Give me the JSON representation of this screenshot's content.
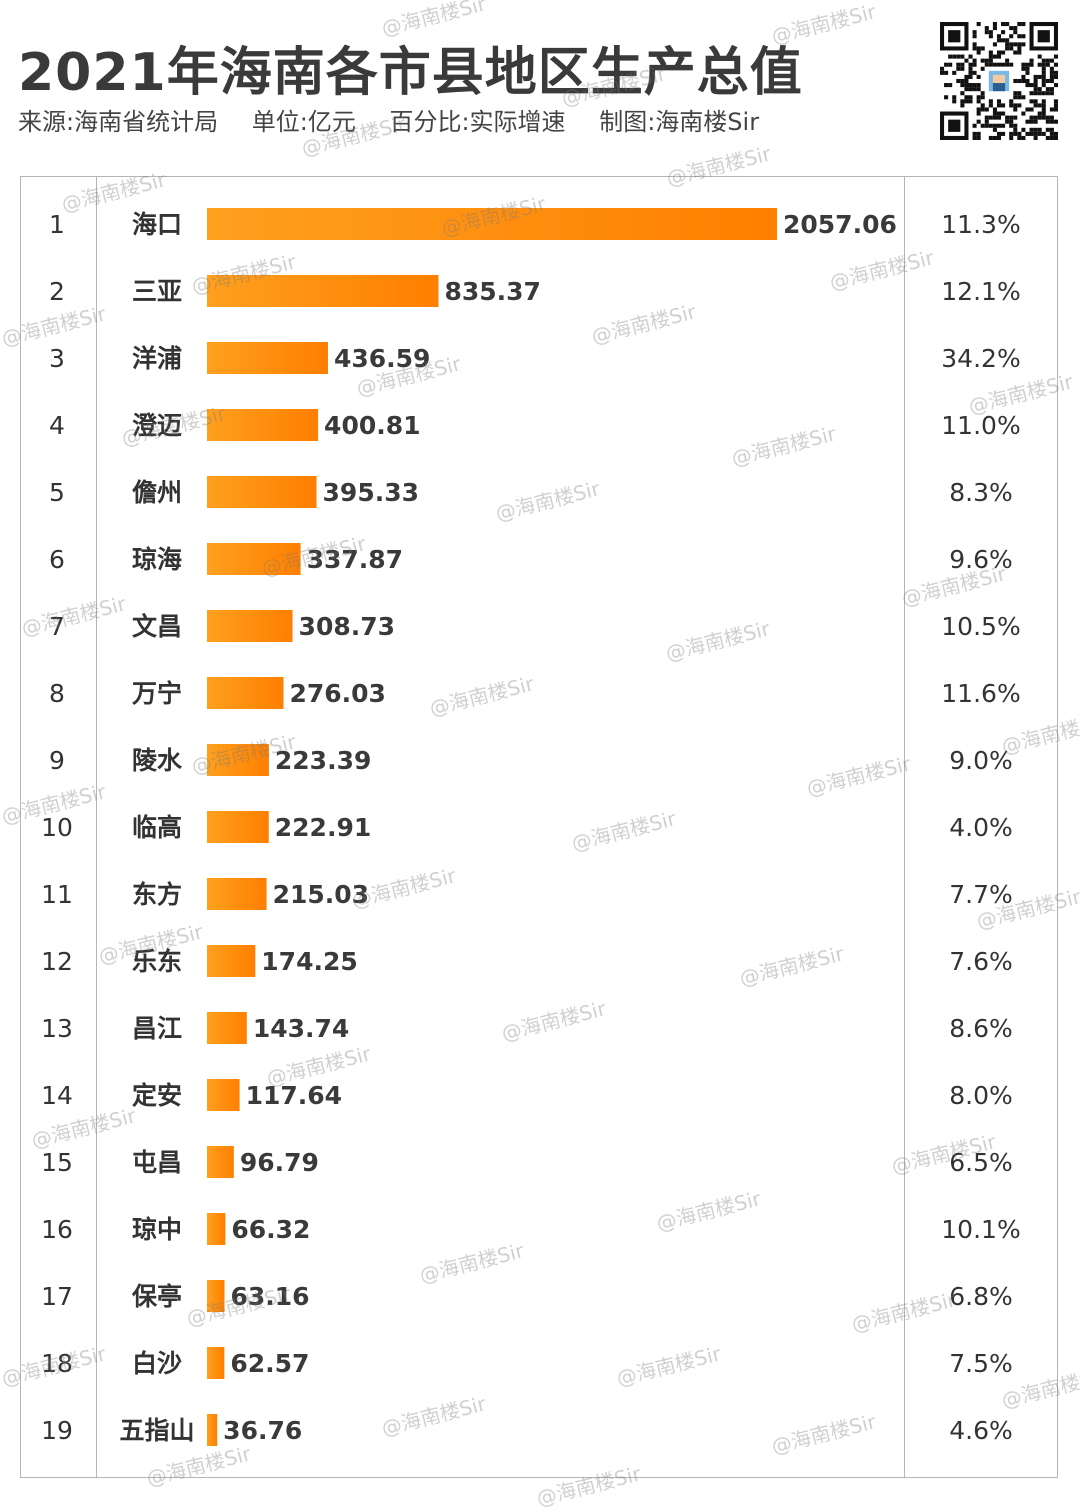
{
  "title": "2021年海南各市县地区生产总值",
  "subtitle": {
    "source": "来源:海南省统计局",
    "unit": "单位:亿元",
    "percent": "百分比:实际增速",
    "maker": "制图:海南楼Sir"
  },
  "watermark": "@海南楼Sir",
  "colors": {
    "bar_start": "#ffa01e",
    "bar_end": "#ff7f00",
    "grid": "#b5b5b5"
  },
  "chart_data": {
    "type": "bar",
    "orientation": "horizontal",
    "title": "2021年海南各市县地区生产总值",
    "unit": "亿元",
    "ranks": [
      "1",
      "2",
      "3",
      "4",
      "5",
      "6",
      "7",
      "8",
      "9",
      "10",
      "11",
      "12",
      "13",
      "14",
      "15",
      "16",
      "17",
      "18",
      "19"
    ],
    "categories": [
      "海口",
      "三亚",
      "洋浦",
      "澄迈",
      "儋州",
      "琼海",
      "文昌",
      "万宁",
      "陵水",
      "临高",
      "东方",
      "乐东",
      "昌江",
      "定安",
      "屯昌",
      "琼中",
      "保亭",
      "白沙",
      "五指山"
    ],
    "values": [
      2057.06,
      835.37,
      436.59,
      400.81,
      395.33,
      337.87,
      308.73,
      276.03,
      223.39,
      222.91,
      215.03,
      174.25,
      143.74,
      117.64,
      96.79,
      66.32,
      63.16,
      62.57,
      36.76
    ],
    "value_labels": [
      "2057.06",
      "835.37",
      "436.59",
      "400.81",
      "395.33",
      "337.87",
      "308.73",
      "276.03",
      "223.39",
      "222.91",
      "215.03",
      "174.25",
      "143.74",
      "117.64",
      "96.79",
      "66.32",
      "63.16",
      "62.57",
      "36.76"
    ],
    "growth": [
      "11.3%",
      "12.1%",
      "34.2%",
      "11.0%",
      "8.3%",
      "9.6%",
      "10.5%",
      "11.6%",
      "9.0%",
      "4.0%",
      "7.7%",
      "7.6%",
      "8.6%",
      "8.0%",
      "6.5%",
      "10.1%",
      "6.8%",
      "7.5%",
      "4.6%"
    ],
    "xlim": [
      0,
      2057.06
    ]
  }
}
